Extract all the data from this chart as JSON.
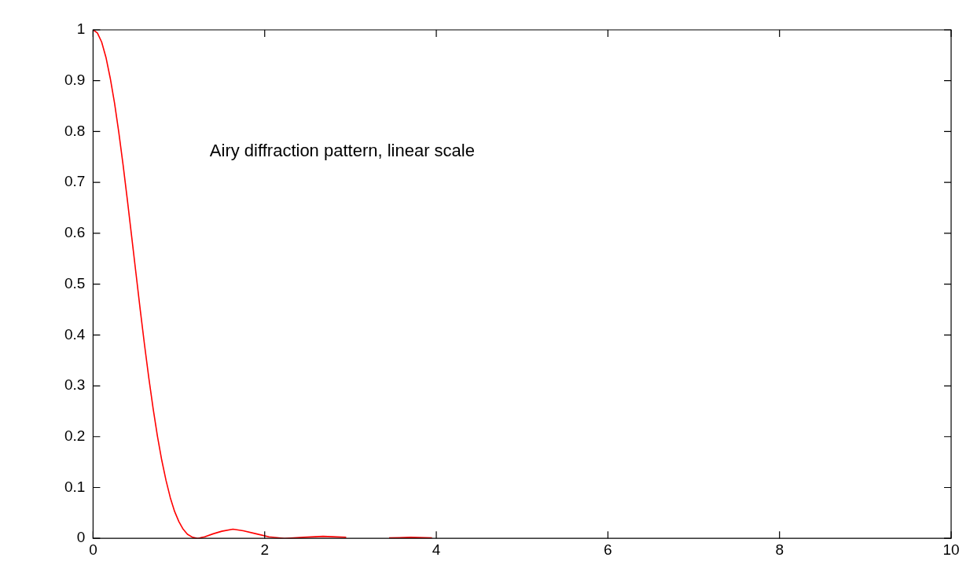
{
  "chart_data": {
    "type": "line",
    "annotations": [
      "Airy diffraction pattern, linear scale"
    ],
    "xlim": [
      0,
      10
    ],
    "xticks": [
      0,
      2,
      4,
      6,
      8,
      10
    ],
    "ylim": [
      0,
      1
    ],
    "yticks": [
      0,
      0.1,
      0.2,
      0.3,
      0.4,
      0.5,
      0.6,
      0.7,
      0.8,
      0.9,
      1
    ],
    "marker": "none",
    "line_style": "solid",
    "series": [
      {
        "color": "#ff0000",
        "x": [
          0,
          0.05,
          0.1,
          0.15,
          0.2,
          0.25,
          0.3,
          0.35,
          0.4,
          0.45,
          0.5,
          0.55,
          0.6,
          0.65,
          0.7,
          0.75,
          0.8,
          0.85,
          0.9,
          0.95,
          1.0,
          1.05,
          1.1,
          1.16,
          1.22,
          1.3,
          1.4,
          1.5,
          1.63,
          1.75,
          1.9,
          2.05,
          2.23,
          2.45,
          2.68,
          2.95,
          3.24,
          3.45,
          3.7,
          3.95
        ],
        "values": [
          1,
          0.994,
          0.976,
          0.946,
          0.905,
          0.856,
          0.798,
          0.734,
          0.665,
          0.593,
          0.521,
          0.449,
          0.38,
          0.315,
          0.255,
          0.201,
          0.154,
          0.114,
          0.08,
          0.053,
          0.033,
          0.018,
          0.008,
          0.002,
          0,
          0.003,
          0.009,
          0.014,
          0.018,
          0.015,
          0.009,
          0.003,
          0,
          0.002,
          0.004,
          0.002,
          null,
          0.001,
          0.002,
          0.001
        ]
      }
    ]
  }
}
